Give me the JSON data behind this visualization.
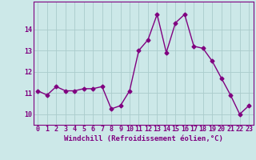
{
  "x": [
    0,
    1,
    2,
    3,
    4,
    5,
    6,
    7,
    8,
    9,
    10,
    11,
    12,
    13,
    14,
    15,
    16,
    17,
    18,
    19,
    20,
    21,
    22,
    23
  ],
  "y": [
    11.1,
    10.9,
    11.3,
    11.1,
    11.1,
    11.2,
    11.2,
    11.3,
    10.25,
    10.4,
    11.1,
    13.0,
    13.5,
    14.7,
    12.9,
    14.3,
    14.7,
    13.2,
    13.1,
    12.5,
    11.7,
    10.9,
    10.0,
    10.4
  ],
  "line_color": "#800080",
  "marker": "D",
  "marker_size": 2.5,
  "linewidth": 1.0,
  "bg_color": "#cce8e8",
  "grid_color": "#aacccc",
  "xlabel": "Windchill (Refroidissement éolien,°C)",
  "ylim": [
    9.5,
    15.3
  ],
  "xlim": [
    -0.5,
    23.5
  ],
  "yticks": [
    10,
    11,
    12,
    13,
    14
  ],
  "xticks": [
    0,
    1,
    2,
    3,
    4,
    5,
    6,
    7,
    8,
    9,
    10,
    11,
    12,
    13,
    14,
    15,
    16,
    17,
    18,
    19,
    20,
    21,
    22,
    23
  ],
  "xlabel_fontsize": 6.5,
  "tick_fontsize": 6.0
}
